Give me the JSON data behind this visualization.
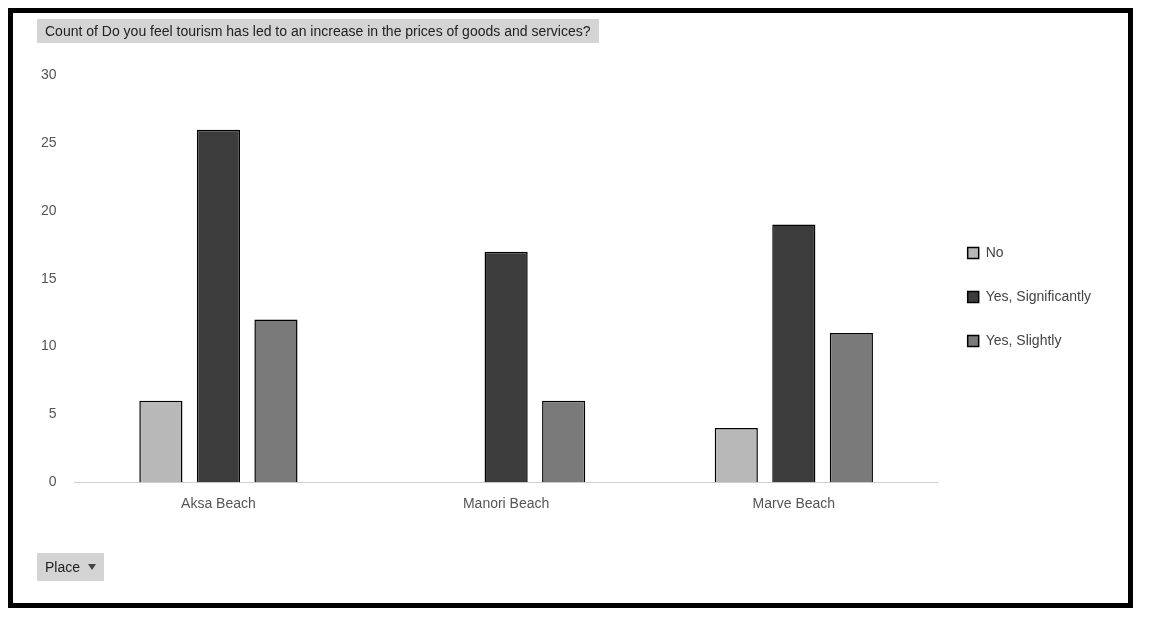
{
  "chart_data": {
    "type": "bar",
    "title": "Count of Do you feel tourism has led to an increase in the prices of goods and services?",
    "categories": [
      "Aksa Beach",
      "Manori Beach",
      "Marve Beach"
    ],
    "series": [
      {
        "name": "No",
        "color": "#b8b8b8",
        "values": [
          6,
          null,
          4
        ]
      },
      {
        "name": "Yes, Significantly",
        "color": "#3c3c3c",
        "values": [
          26,
          17,
          19
        ]
      },
      {
        "name": "Yes, Slightly",
        "color": "#7a7a7a",
        "values": [
          12,
          6,
          11
        ]
      }
    ],
    "ylim": [
      0,
      30
    ],
    "yticks": [
      0,
      5,
      10,
      15,
      20,
      25,
      30
    ],
    "grid": false,
    "legend": "right",
    "annotations": [
      "Place"
    ]
  }
}
